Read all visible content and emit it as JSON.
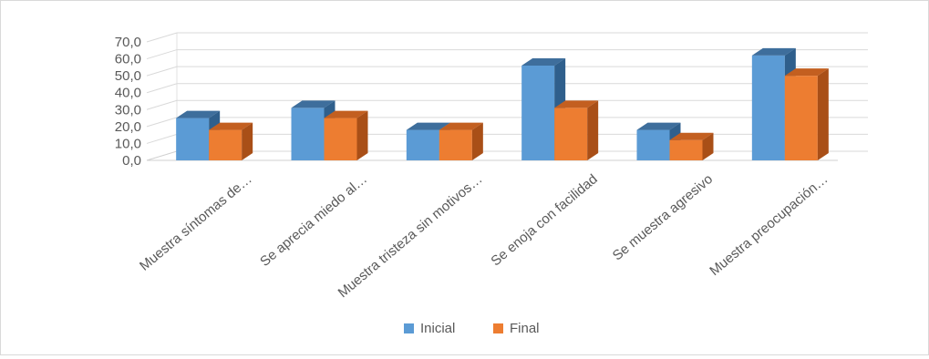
{
  "chart_data": {
    "type": "bar",
    "title": "",
    "xlabel": "",
    "ylabel": "",
    "categories": [
      "Muestra síntomas de…",
      "Se aprecia miedo al…",
      "Muestra tristeza sin motivos…",
      "Se enoja con facilidad",
      "Se muestra agresivo",
      "Muestra preocupación…"
    ],
    "series": [
      {
        "name": "Inicial",
        "values": [
          25,
          31,
          18,
          56,
          18,
          62
        ],
        "color": "#5B9BD5",
        "top_color": "#3E6E9C",
        "side_color": "#2F5F8C"
      },
      {
        "name": "Final",
        "values": [
          18,
          25,
          18,
          31,
          12,
          50
        ],
        "color": "#ED7D31",
        "top_color": "#C35F20",
        "side_color": "#A94F17"
      }
    ],
    "yticks": [
      "0,0",
      "10,0",
      "20,0",
      "30,0",
      "40,0",
      "50,0",
      "60,0",
      "70,0"
    ],
    "ylim": [
      0,
      70
    ],
    "grid": true,
    "legend_position": "bottom"
  }
}
